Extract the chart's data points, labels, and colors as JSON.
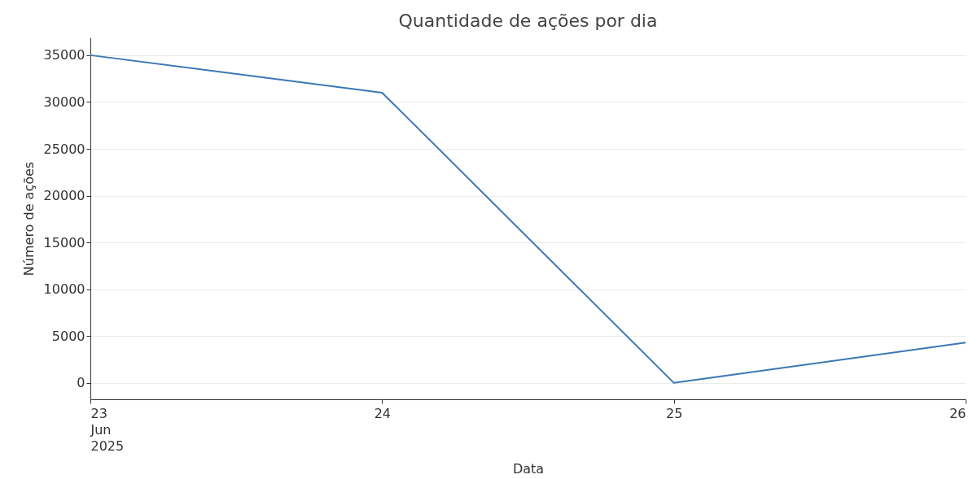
{
  "chart_data": {
    "type": "line",
    "title": "Quantidade de ações por dia",
    "xlabel": "Data",
    "ylabel": "Número de ações",
    "x": [
      "2025-06-23",
      "2025-06-24",
      "2025-06-25",
      "2025-06-26"
    ],
    "series": [
      {
        "color": "#3a78b5",
        "values": [
          35000,
          31000,
          0,
          4300
        ]
      }
    ],
    "xlim": [
      "2025-06-23",
      "2025-06-26"
    ],
    "xticks": [
      {
        "value": "2025-06-23",
        "label": "23\nJun\n2025"
      },
      {
        "value": "2025-06-24",
        "label": "24"
      },
      {
        "value": "2025-06-25",
        "label": "25"
      },
      {
        "value": "2025-06-26",
        "label": "26"
      }
    ],
    "ylim": [
      -1750,
      36900
    ],
    "yticks": [
      0,
      5000,
      10000,
      15000,
      20000,
      25000,
      30000,
      35000
    ],
    "grid": "y",
    "marker": "none",
    "line_style": "solid"
  }
}
